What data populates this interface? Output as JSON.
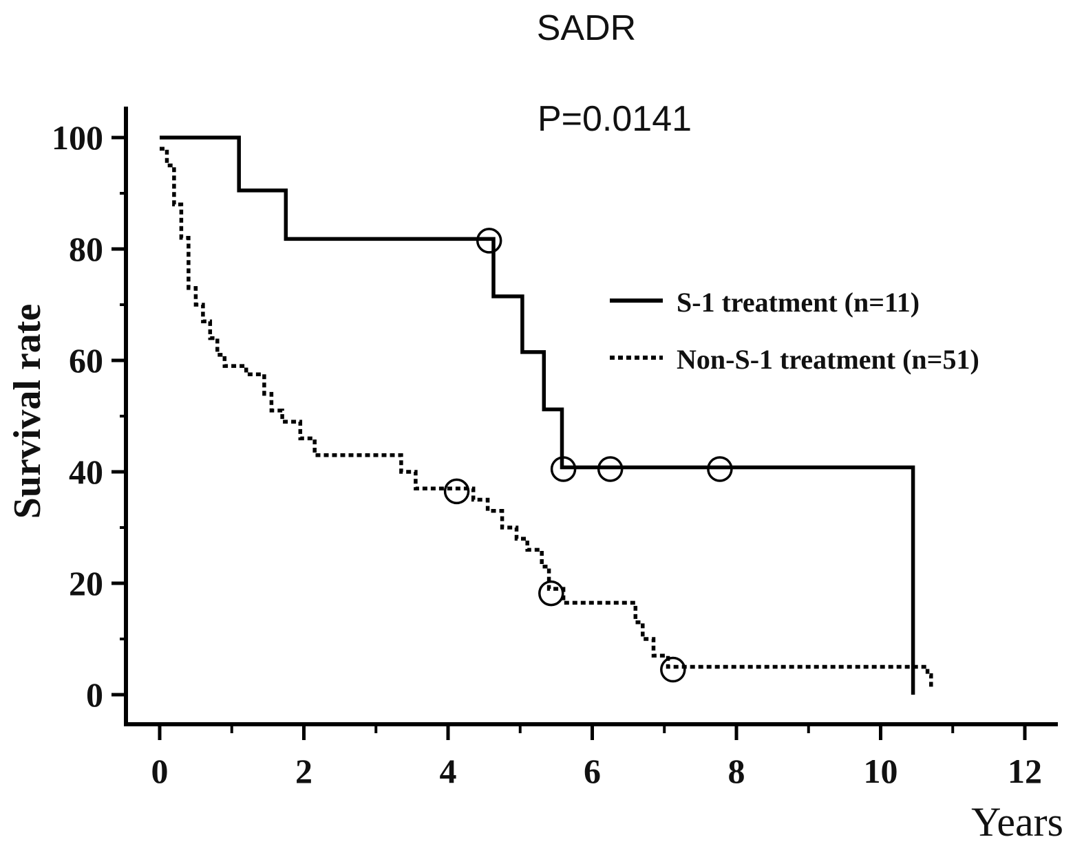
{
  "chart_data": {
    "type": "line",
    "subtype": "kaplan-meier survival curve",
    "title": "SADR",
    "annotation": "P=0.0141",
    "xlabel": "Years",
    "ylabel": "Survival rate",
    "xlim": [
      0,
      12
    ],
    "ylim": [
      0,
      100
    ],
    "xticks": [
      "0",
      "2",
      "4",
      "6",
      "8",
      "10",
      "12"
    ],
    "yticks": [
      "0",
      "20",
      "40",
      "60",
      "80",
      "100"
    ],
    "grid": false,
    "legend_position": "right",
    "series": [
      {
        "name": "S-1 treatment (n=11)",
        "style": "solid",
        "steps": [
          [
            0,
            100
          ],
          [
            1.1,
            100
          ],
          [
            1.1,
            90.5
          ],
          [
            1.75,
            90.5
          ],
          [
            1.75,
            81.8
          ],
          [
            4.63,
            81.8
          ],
          [
            4.63,
            71.5
          ],
          [
            5.03,
            71.5
          ],
          [
            5.03,
            61.5
          ],
          [
            5.33,
            61.5
          ],
          [
            5.33,
            51.2
          ],
          [
            5.58,
            51.2
          ],
          [
            5.58,
            40.8
          ],
          [
            10.45,
            40.8
          ],
          [
            10.45,
            0
          ]
        ],
        "censored": [
          [
            4.57,
            81.5
          ],
          [
            5.6,
            40.5
          ],
          [
            6.25,
            40.5
          ],
          [
            7.77,
            40.5
          ]
        ]
      },
      {
        "name": "Non-S-1 treatment (n=51)",
        "style": "dotted",
        "steps": [
          [
            0,
            98
          ],
          [
            0.1,
            98
          ],
          [
            0.1,
            95
          ],
          [
            0.2,
            95
          ],
          [
            0.2,
            88
          ],
          [
            0.3,
            88
          ],
          [
            0.3,
            82
          ],
          [
            0.4,
            82
          ],
          [
            0.4,
            73
          ],
          [
            0.5,
            73
          ],
          [
            0.5,
            70
          ],
          [
            0.6,
            70
          ],
          [
            0.6,
            67
          ],
          [
            0.7,
            67
          ],
          [
            0.7,
            64
          ],
          [
            0.8,
            64
          ],
          [
            0.8,
            61
          ],
          [
            0.9,
            61
          ],
          [
            0.9,
            59
          ],
          [
            1.2,
            59
          ],
          [
            1.2,
            57.5
          ],
          [
            1.45,
            57.5
          ],
          [
            1.45,
            54
          ],
          [
            1.55,
            54
          ],
          [
            1.55,
            51
          ],
          [
            1.7,
            51
          ],
          [
            1.7,
            49
          ],
          [
            1.95,
            49
          ],
          [
            1.95,
            46
          ],
          [
            2.15,
            46
          ],
          [
            2.15,
            43
          ],
          [
            3.35,
            43
          ],
          [
            3.35,
            40
          ],
          [
            3.55,
            40
          ],
          [
            3.55,
            37
          ],
          [
            4.35,
            37
          ],
          [
            4.35,
            35
          ],
          [
            4.55,
            35
          ],
          [
            4.55,
            33
          ],
          [
            4.75,
            33
          ],
          [
            4.75,
            30
          ],
          [
            4.95,
            30
          ],
          [
            4.95,
            28
          ],
          [
            5.1,
            28
          ],
          [
            5.1,
            26
          ],
          [
            5.3,
            26
          ],
          [
            5.3,
            23
          ],
          [
            5.4,
            23
          ],
          [
            5.4,
            19
          ],
          [
            5.6,
            19
          ],
          [
            5.6,
            16.5
          ],
          [
            6.6,
            16.5
          ],
          [
            6.6,
            13
          ],
          [
            6.7,
            13
          ],
          [
            6.7,
            10
          ],
          [
            6.85,
            10
          ],
          [
            6.85,
            7
          ],
          [
            7.05,
            7
          ],
          [
            7.05,
            5
          ],
          [
            10.65,
            5
          ],
          [
            10.65,
            3.5
          ],
          [
            10.7,
            3.5
          ],
          [
            10.7,
            1
          ]
        ],
        "censored": [
          [
            4.12,
            36.5
          ],
          [
            5.43,
            18.2
          ],
          [
            7.12,
            4.5
          ]
        ]
      }
    ]
  }
}
